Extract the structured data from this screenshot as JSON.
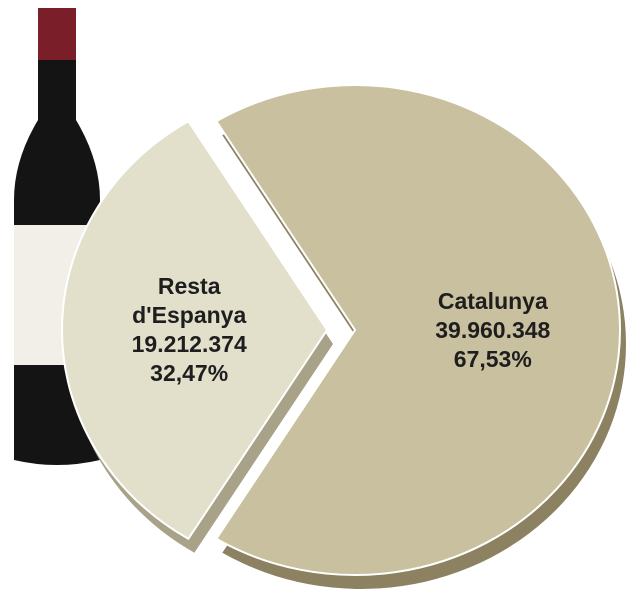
{
  "chart_data": {
    "type": "pie",
    "categories": [
      "Resta d'Espanya",
      "Catalunya"
    ],
    "values": [
      19212374,
      39960348
    ],
    "value_labels": [
      "19.212.374",
      "39.960.348"
    ],
    "percentages": [
      32.47,
      67.53
    ],
    "percentage_labels": [
      "32,47%",
      "67,53%"
    ],
    "colors": [
      "#e2dfcb",
      "#c9c09f"
    ],
    "side_colors": [
      "#a8a289",
      "#8c8262"
    ]
  }
}
